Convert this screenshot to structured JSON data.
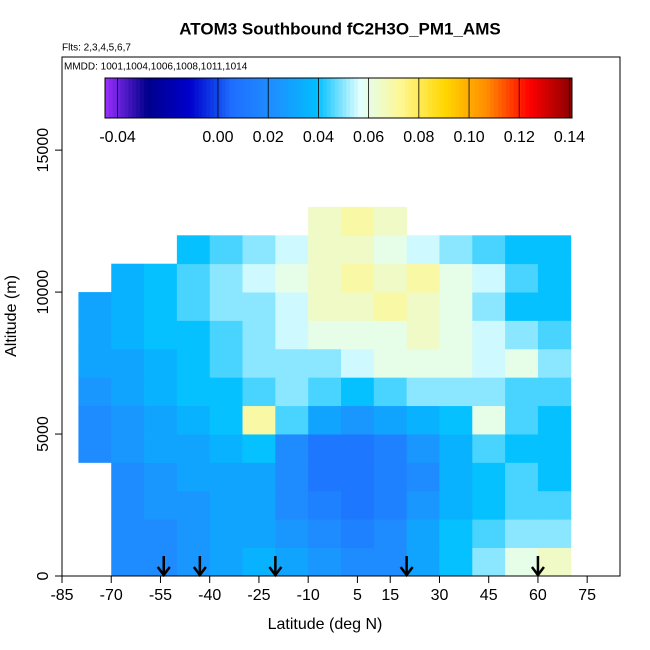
{
  "chart_data": {
    "type": "heatmap",
    "title": "ATOM3 Southbound fC2H3O_PM1_AMS",
    "subtitle": "Flts: 2,3,4,5,6,7",
    "annotation": "MMDD: 1001,1004,1006,1008,1011,1014",
    "x_label": "Latitude (deg N)",
    "y_label": "Altitude (m)",
    "xlim": [
      -85,
      85
    ],
    "ylim": [
      0,
      18280
    ],
    "xticks": [
      -85,
      -70,
      -55,
      -40,
      -25,
      -10,
      5,
      15,
      30,
      45,
      60,
      75
    ],
    "yticks": [
      0,
      5000,
      10000,
      15000
    ],
    "x_edges": [
      -80,
      -70,
      -60,
      -50,
      -40,
      -30,
      -20,
      -10,
      0,
      10,
      20,
      30,
      40,
      50,
      60,
      70
    ],
    "y_edges": [
      0,
      1000,
      2000,
      3000,
      4000,
      5000,
      6000,
      7000,
      8000,
      9000,
      10000,
      11000,
      12000,
      13000
    ],
    "values": [
      [
        null,
        0.02,
        0.02,
        0.025,
        0.03,
        0.035,
        0.03,
        0.025,
        0.02,
        0.02,
        0.03,
        0.04,
        0.05,
        0.06,
        0.065
      ],
      [
        null,
        0.02,
        0.02,
        0.025,
        0.03,
        0.03,
        0.025,
        0.02,
        0.015,
        0.02,
        0.03,
        0.04,
        0.045,
        0.05,
        0.05
      ],
      [
        null,
        0.02,
        0.025,
        0.025,
        0.03,
        0.03,
        0.02,
        0.015,
        0.01,
        0.015,
        0.025,
        0.035,
        0.04,
        0.045,
        0.045
      ],
      [
        null,
        0.02,
        0.025,
        0.03,
        0.03,
        0.03,
        0.02,
        0.01,
        0.01,
        0.015,
        0.02,
        0.035,
        0.04,
        0.045,
        0.04
      ],
      [
        0.02,
        0.025,
        0.03,
        0.03,
        0.035,
        0.04,
        0.02,
        0.01,
        0.01,
        0.015,
        0.025,
        0.035,
        0.045,
        0.04,
        0.04
      ],
      [
        0.02,
        0.025,
        0.03,
        0.035,
        0.04,
        0.07,
        0.045,
        0.03,
        0.025,
        0.03,
        0.035,
        0.04,
        0.06,
        0.045,
        0.04
      ],
      [
        0.025,
        0.03,
        0.035,
        0.04,
        0.04,
        0.045,
        0.05,
        0.045,
        0.04,
        0.045,
        0.05,
        0.05,
        0.05,
        0.045,
        0.045
      ],
      [
        0.03,
        0.03,
        0.035,
        0.04,
        0.045,
        0.05,
        0.05,
        0.05,
        0.055,
        0.06,
        0.06,
        0.06,
        0.055,
        0.06,
        0.05
      ],
      [
        0.03,
        0.035,
        0.04,
        0.04,
        0.045,
        0.05,
        0.055,
        0.06,
        0.06,
        0.06,
        0.065,
        0.06,
        0.055,
        0.05,
        0.045
      ],
      [
        0.03,
        0.035,
        0.04,
        0.045,
        0.05,
        0.05,
        0.055,
        0.065,
        0.065,
        0.07,
        0.065,
        0.06,
        0.05,
        0.04,
        0.04
      ],
      [
        null,
        0.035,
        0.04,
        0.045,
        0.05,
        0.055,
        0.06,
        0.065,
        0.07,
        0.065,
        0.07,
        0.06,
        0.055,
        0.045,
        0.04
      ],
      [
        null,
        null,
        null,
        0.04,
        0.045,
        0.05,
        0.055,
        0.065,
        0.065,
        0.06,
        0.055,
        0.05,
        0.045,
        0.04,
        0.04
      ],
      [
        null,
        null,
        null,
        null,
        null,
        null,
        null,
        0.065,
        0.07,
        0.065,
        null,
        null,
        null,
        null,
        null
      ]
    ],
    "clim": [
      -0.045,
      0.141
    ],
    "cticks": [
      -0.04,
      0.0,
      0.02,
      0.04,
      0.06,
      0.08,
      0.1,
      0.12,
      0.14
    ],
    "cticks_labels": [
      "-0.04",
      "0.00",
      "0.02",
      "0.04",
      "0.06",
      "0.08",
      "0.10",
      "0.12",
      "0.14"
    ],
    "colorscale": [
      "#9b30ff",
      "#00008b",
      "#0000cd",
      "#1e6fff",
      "#1e90ff",
      "#00bfff",
      "#e0ffff",
      "#fff68f",
      "#ffd700",
      "#ff8c00",
      "#ff0000",
      "#8b0000"
    ],
    "arrows_x": [
      -54,
      -43,
      -20,
      20,
      60
    ]
  }
}
